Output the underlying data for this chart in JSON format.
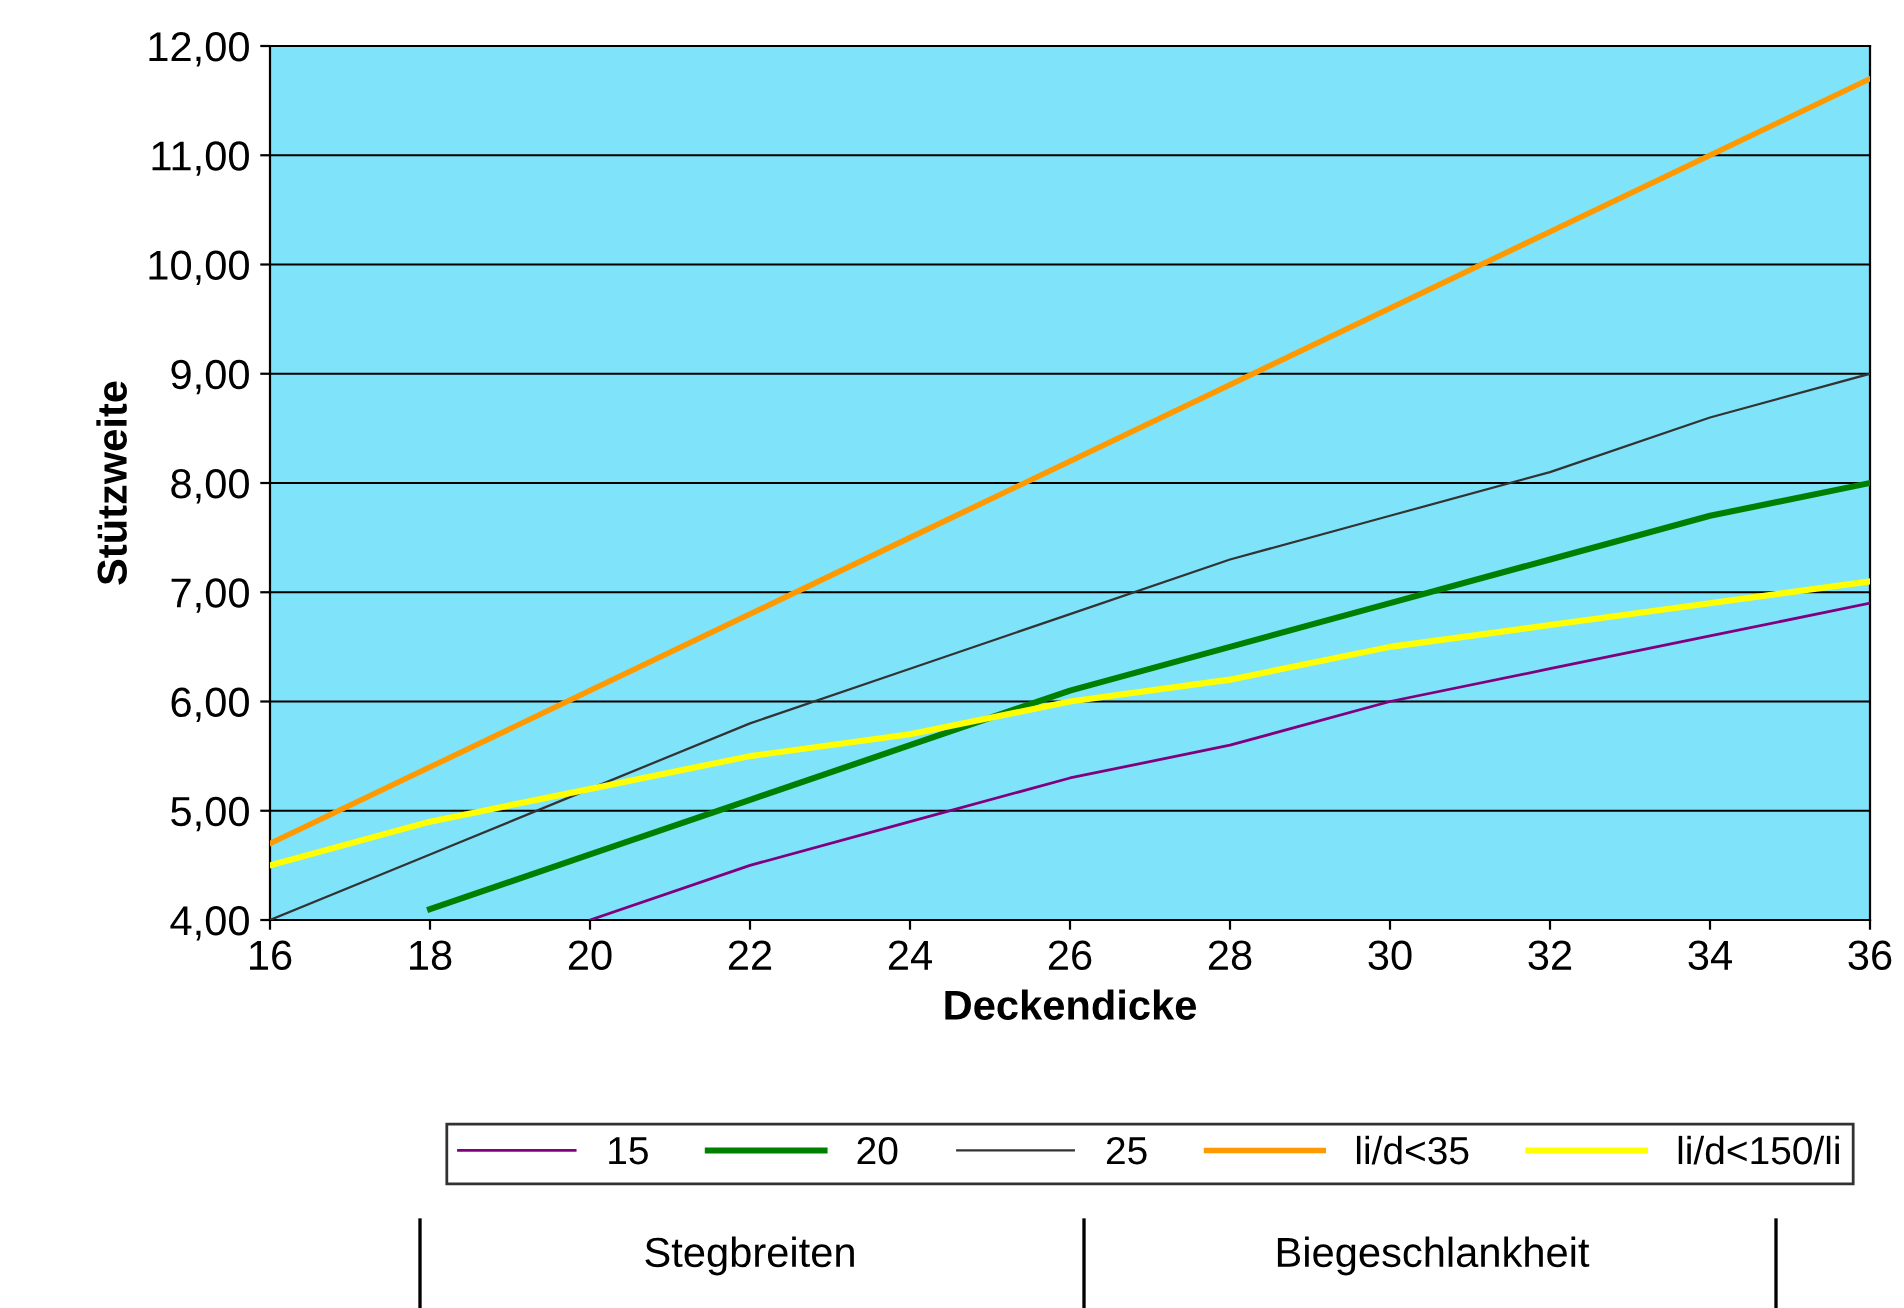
{
  "chart_data": {
    "type": "line",
    "xlabel": "Deckendicke",
    "ylabel": "Stützweite",
    "x": [
      16,
      18,
      20,
      22,
      24,
      26,
      28,
      30,
      32,
      34,
      36
    ],
    "series": [
      {
        "name": "15",
        "color": "#800080",
        "values": [
          null,
          null,
          4.0,
          4.5,
          4.9,
          5.3,
          5.6,
          6.0,
          6.3,
          6.6,
          6.9
        ]
      },
      {
        "name": "20",
        "color": "#008000",
        "values": [
          null,
          4.1,
          4.6,
          5.1,
          5.6,
          6.1,
          6.5,
          6.9,
          7.3,
          7.7,
          8.0
        ]
      },
      {
        "name": "25",
        "color": "#333333",
        "values": [
          4.0,
          4.6,
          5.2,
          5.8,
          6.3,
          6.8,
          7.3,
          7.7,
          8.1,
          8.6,
          9.0
        ]
      },
      {
        "name": "li/d<35",
        "color": "#ff9900",
        "values": [
          4.7,
          5.4,
          6.1,
          6.8,
          7.5,
          8.2,
          8.9,
          9.6,
          10.3,
          11.0,
          11.7
        ]
      },
      {
        "name": "li/d<150/li",
        "color": "#ffff00",
        "values": [
          4.5,
          4.9,
          5.2,
          5.5,
          5.7,
          6.0,
          6.2,
          6.5,
          6.7,
          6.9,
          7.1
        ]
      }
    ],
    "xlim": [
      16,
      36
    ],
    "xticks": [
      16,
      18,
      20,
      22,
      24,
      26,
      28,
      30,
      32,
      34,
      36
    ],
    "ylim": [
      4,
      12
    ],
    "yticks": [
      {
        "value": 4,
        "label": "4,00"
      },
      {
        "value": 5,
        "label": "5,00"
      },
      {
        "value": 6,
        "label": "6,00"
      },
      {
        "value": 7,
        "label": "7,00"
      },
      {
        "value": 8,
        "label": "8,00"
      },
      {
        "value": 9,
        "label": "9,00"
      },
      {
        "value": 10,
        "label": "10,00"
      },
      {
        "value": 11,
        "label": "11,00"
      },
      {
        "value": 12,
        "label": "12,00"
      }
    ],
    "grid": "y",
    "legend": "bottom",
    "marker": "none",
    "line_style": "solid",
    "annotations": [
      "Stegbreiten",
      "Biegeschlankheit"
    ]
  }
}
